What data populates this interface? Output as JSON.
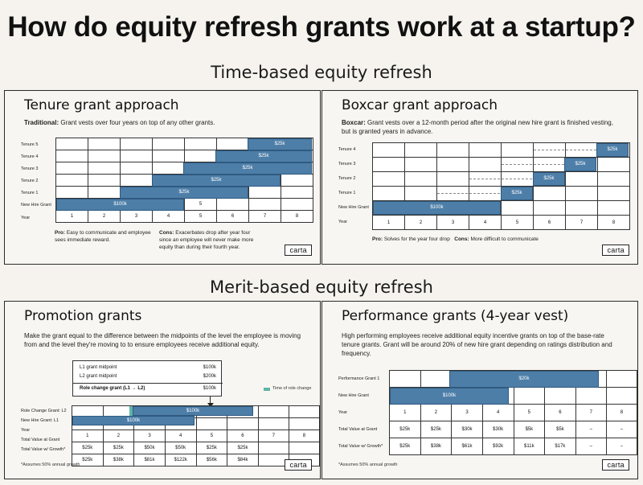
{
  "title": "How do equity refresh grants work at a startup?",
  "sections": {
    "time": "Time-based equity refresh",
    "merit": "Merit-based equity refresh"
  },
  "logo": "carta",
  "tenure": {
    "title": "Tenure grant approach",
    "desc_bold": "Traditional:",
    "desc": "Grant vests over four years on top of any other grants.",
    "rows": [
      "Tenure 5",
      "Tenure 4",
      "Tenure 3",
      "Tenure 2",
      "Tenure 1",
      "New Hire Grant",
      "Year"
    ],
    "years": [
      "1",
      "2",
      "3",
      "4",
      "5",
      "6",
      "7",
      "8"
    ],
    "bar_values": [
      "$25k",
      "$25k",
      "$25k",
      "$25k",
      "$25k",
      "$100k"
    ],
    "nhg_cell5": "5",
    "pro_bold": "Pro:",
    "pro": "Easy to communicate and employee sees immediate reward.",
    "con_bold": "Cons:",
    "con": "Exacerbates drop after year four since an employee will never make more equity than during their fourth year."
  },
  "boxcar": {
    "title": "Boxcar grant approach",
    "desc_bold": "Boxcar:",
    "desc": "Grant vests over a 12-month period after the original new hire grant is finished vesting, but is granted years in advance.",
    "rows": [
      "Tenure 4",
      "Tenure 3",
      "Tenure 2",
      "Tenure 1",
      "New Hire Grant",
      "Year"
    ],
    "years": [
      "1",
      "2",
      "3",
      "4",
      "5",
      "6",
      "7",
      "8"
    ],
    "bar_values": [
      "$25k",
      "$25k",
      "$25k",
      "$25k",
      "$100k"
    ],
    "pro_bold": "Pro:",
    "pro": "Solves for the year four drop",
    "con_bold": "Cons:",
    "con": "More difficult to communicate"
  },
  "promotion": {
    "title": "Promotion grants",
    "desc": "Make the grant equal to the difference between the midpoints of the level the employee is moving from and the level they're moving to to ensure employees receive additional equity.",
    "box": [
      {
        "label": "L1 grant midpoint",
        "value": "$100k"
      },
      {
        "label": "L2 grant midpoint",
        "value": "$200k"
      },
      {
        "label": "Role change grant (L1 → L2)",
        "value": "$100k"
      }
    ],
    "legend": "Time of role change",
    "rows": [
      "Role Change Grant: L2",
      "New Hire Grant: L1",
      "Year",
      "Total Value at Grant",
      "Total Value w/ Growth*"
    ],
    "years": [
      "1",
      "2",
      "3",
      "4",
      "5",
      "6",
      "7",
      "8"
    ],
    "bar_values": [
      "$100k",
      "$100k"
    ],
    "at_grant": [
      "$25k",
      "$25k",
      "$50k",
      "$50k",
      "$25k",
      "$25k",
      "",
      ""
    ],
    "with_growth": [
      "$25k",
      "$38k",
      "$81k",
      "$122k",
      "$56k",
      "$84k",
      "",
      ""
    ],
    "footnote": "*Assumes 50% annual growth"
  },
  "performance": {
    "title": "Performance grants (4-year vest)",
    "desc": "High performing employees receive additional equity incentive grants on top of the base-rate tenure grants. Grant will be around 20% of new hire grant depending on ratings distribution and frequency.",
    "rows": [
      "Performance Grant 1",
      "New Hire Grant",
      "Year",
      "Total Value at Grant",
      "Total Value w/ Growth*"
    ],
    "years": [
      "1",
      "2",
      "3",
      "4",
      "5",
      "6",
      "7",
      "8"
    ],
    "bar_values": [
      "$20k",
      "$100k"
    ],
    "at_grant": [
      "$25k",
      "$25k",
      "$30k",
      "$30k",
      "$5k",
      "$5k",
      "–",
      "–"
    ],
    "with_growth": [
      "$25k",
      "$38k",
      "$61k",
      "$92k",
      "$11k",
      "$17k",
      "–",
      "–"
    ],
    "footnote": "*Assumes 50% annual growth"
  },
  "colors": {
    "bar": "#4d7ea8",
    "legend": "#5fb5a8"
  }
}
